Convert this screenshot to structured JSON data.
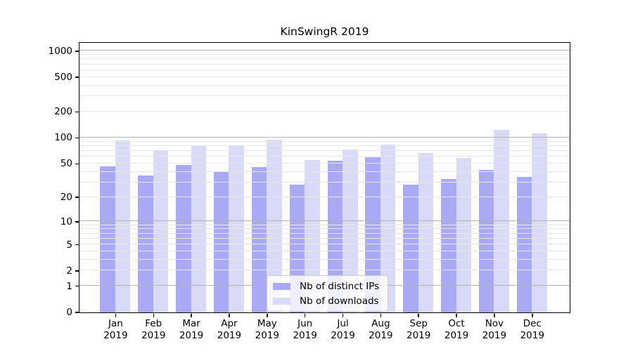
{
  "title": "KinSwingR 2019",
  "chart_data": {
    "type": "bar",
    "title": "KinSwingR 2019",
    "xlabel": "",
    "ylabel": "",
    "yscale": "log1p",
    "ylim": [
      0,
      1237
    ],
    "grid": "on",
    "legend_position": "lower center inside",
    "categories": [
      "Jan 2019",
      "Feb 2019",
      "Mar 2019",
      "Apr 2019",
      "May 2019",
      "Jun 2019",
      "Jul 2019",
      "Aug 2019",
      "Sep 2019",
      "Oct 2019",
      "Nov 2019",
      "Dec 2019"
    ],
    "ytick_labels": [
      "0",
      "1",
      "2",
      "5",
      "10",
      "20",
      "50",
      "100",
      "200",
      "500",
      "1000"
    ],
    "ytick_values": [
      0,
      1,
      2,
      5,
      10,
      20,
      50,
      100,
      200,
      500,
      1000
    ],
    "series": [
      {
        "name": "Nb of distinct IPs",
        "color": "#a9a9f5",
        "values": [
          46,
          36,
          48,
          40,
          45,
          28,
          54,
          59,
          28,
          33,
          42,
          35
        ]
      },
      {
        "name": "Nb of downloads",
        "color": "#d9d9f8",
        "values": [
          92,
          71,
          82,
          80,
          95,
          55,
          72,
          83,
          66,
          58,
          122,
          111
        ]
      }
    ]
  },
  "colors": {
    "major_grid": "#b3b3b3",
    "minor_grid": "#e7e7e7",
    "axis": "#000000",
    "background": "#ffffff"
  }
}
